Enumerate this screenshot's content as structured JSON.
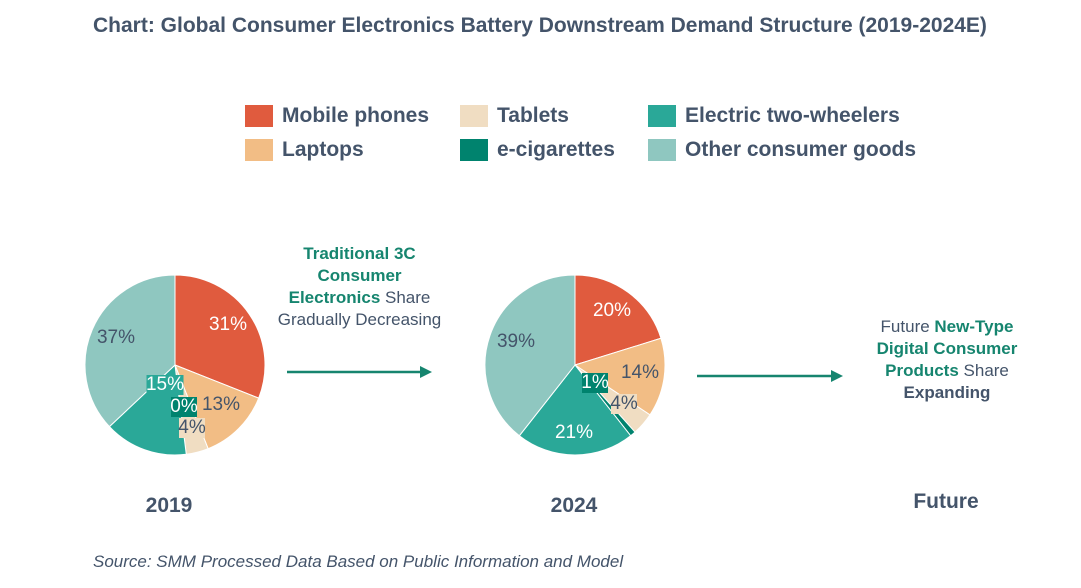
{
  "title": "Chart: Global Consumer Electronics Battery Downstream Demand Structure (2019-2024E)",
  "source": "Source: SMM Processed Data Based on Public Information and Model",
  "colors": {
    "mobile_phones": "#e05b3e",
    "laptops": "#f2bd85",
    "tablets": "#f0ddc2",
    "e_cigarettes": "#00836e",
    "electric_two_wheelers": "#2aa898",
    "other_consumer_goods": "#8fc7c0",
    "accent_text": "#16856f",
    "arrow": "#16856f"
  },
  "legend": [
    {
      "label": "Mobile phones",
      "color": "#e05b3e"
    },
    {
      "label": "Tablets",
      "color": "#f0ddc2"
    },
    {
      "label": "Electric two-wheelers",
      "color": "#2aa898"
    },
    {
      "label": "Laptops",
      "color": "#f2bd85"
    },
    {
      "label": "e-cigarettes",
      "color": "#00836e"
    },
    {
      "label": "Other consumer goods",
      "color": "#8fc7c0"
    }
  ],
  "captions": {
    "traditional": {
      "highlight": "Traditional 3C Consumer Electronics",
      "rest": " Share Gradually Decreasing"
    },
    "future": {
      "lead": "Future ",
      "highlight": "New-Type Digital Consumer Products",
      "mid": " Share ",
      "bold": "Expanding"
    }
  },
  "year_labels": [
    "2019",
    "2024",
    "Future"
  ],
  "chart_data": [
    {
      "type": "pie",
      "title": "2019",
      "slices": [
        {
          "name": "Mobile phones",
          "value": 31,
          "label": "31%"
        },
        {
          "name": "Laptops",
          "value": 13,
          "label": "13%"
        },
        {
          "name": "Tablets",
          "value": 4,
          "label": "4%"
        },
        {
          "name": "e-cigarettes",
          "value": 0,
          "label": "0%"
        },
        {
          "name": "Electric two-wheelers",
          "value": 15,
          "label": "15%"
        },
        {
          "name": "Other consumer goods",
          "value": 37,
          "label": "37%"
        }
      ]
    },
    {
      "type": "pie",
      "title": "2024",
      "slices": [
        {
          "name": "Mobile phones",
          "value": 20,
          "label": "20%"
        },
        {
          "name": "Laptops",
          "value": 14,
          "label": "14%"
        },
        {
          "name": "Tablets",
          "value": 4,
          "label": "4%"
        },
        {
          "name": "e-cigarettes",
          "value": 1,
          "label": "1%"
        },
        {
          "name": "Electric two-wheelers",
          "value": 21,
          "label": "21%"
        },
        {
          "name": "Other consumer goods",
          "value": 39,
          "label": "39%"
        }
      ]
    }
  ]
}
